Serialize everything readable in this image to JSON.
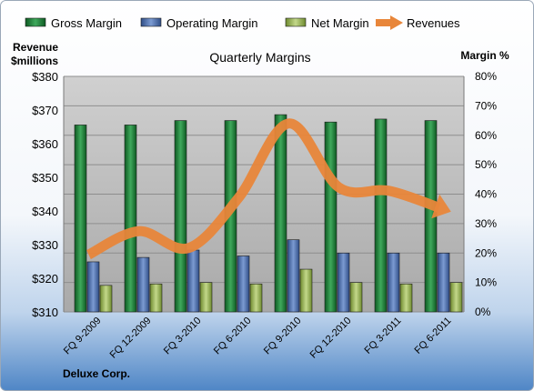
{
  "chart_data": {
    "type": "bar",
    "title": "Quarterly Margins",
    "company": "Deluxe Corp.",
    "left_axis_label_line1": "Revenue",
    "left_axis_label_line2": "$millions",
    "right_axis_label": "Margin %",
    "categories": [
      "FQ 9-2009",
      "FQ 12-2009",
      "FQ 3-2010",
      "FQ 6-2010",
      "FQ 9-2010",
      "FQ 12-2010",
      "FQ 3-2011",
      "FQ 6-2011"
    ],
    "left_axis": {
      "min": 310,
      "max": 380,
      "step": 10,
      "ticks": [
        "$310",
        "$320",
        "$330",
        "$340",
        "$350",
        "$360",
        "$370",
        "$380"
      ]
    },
    "right_axis": {
      "min": 0,
      "max": 80,
      "step": 10,
      "ticks": [
        "0%",
        "10%",
        "20%",
        "30%",
        "40%",
        "50%",
        "60%",
        "70%",
        "80%"
      ]
    },
    "series": [
      {
        "name": "Gross Margin",
        "type": "bar",
        "axis": "right",
        "color": "#1E7B3A",
        "values": [
          63.5,
          63.5,
          65,
          65,
          67,
          64.5,
          65.5,
          65
        ]
      },
      {
        "name": "Operating Margin",
        "type": "bar",
        "axis": "right",
        "color": "#4A6FB0",
        "values": [
          17,
          18.5,
          21,
          19,
          24.5,
          20,
          20,
          20
        ]
      },
      {
        "name": "Net Margin",
        "type": "bar",
        "axis": "right",
        "color": "#9BB55A",
        "values": [
          9,
          9.5,
          10,
          9.5,
          14.5,
          10,
          9.5,
          10
        ]
      },
      {
        "name": "Revenues",
        "type": "line",
        "axis": "left",
        "color": "#E8863A",
        "values": [
          327,
          334,
          329,
          344,
          366,
          347,
          346,
          341
        ]
      }
    ],
    "grid": true,
    "legend": "top"
  }
}
